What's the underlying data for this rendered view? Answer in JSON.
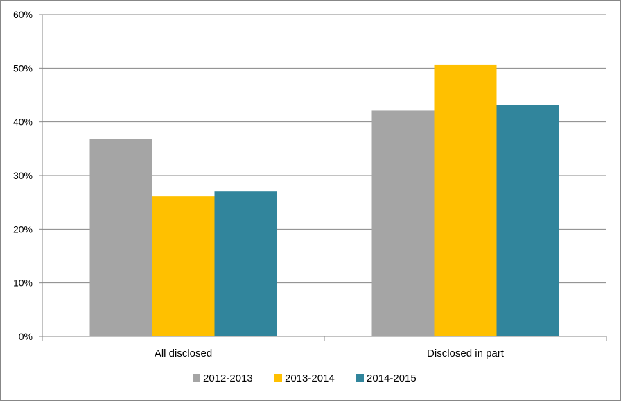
{
  "chart_data": {
    "type": "bar",
    "categories": [
      "All disclosed",
      "Disclosed in part"
    ],
    "series": [
      {
        "name": "2012-2013",
        "values": [
          36.8,
          42.1
        ],
        "color": "#A5A5A5"
      },
      {
        "name": "2013-2014",
        "values": [
          26.1,
          50.7
        ],
        "color": "#FFC000"
      },
      {
        "name": "2014-2015",
        "values": [
          27.0,
          43.1
        ],
        "color": "#31859C"
      }
    ],
    "ylim": [
      0,
      60
    ],
    "yticks": [
      "0%",
      "10%",
      "20%",
      "30%",
      "40%",
      "50%",
      "60%"
    ],
    "ytick_values": [
      0,
      10,
      20,
      30,
      40,
      50,
      60
    ],
    "grid": true,
    "legend_position": "bottom"
  }
}
